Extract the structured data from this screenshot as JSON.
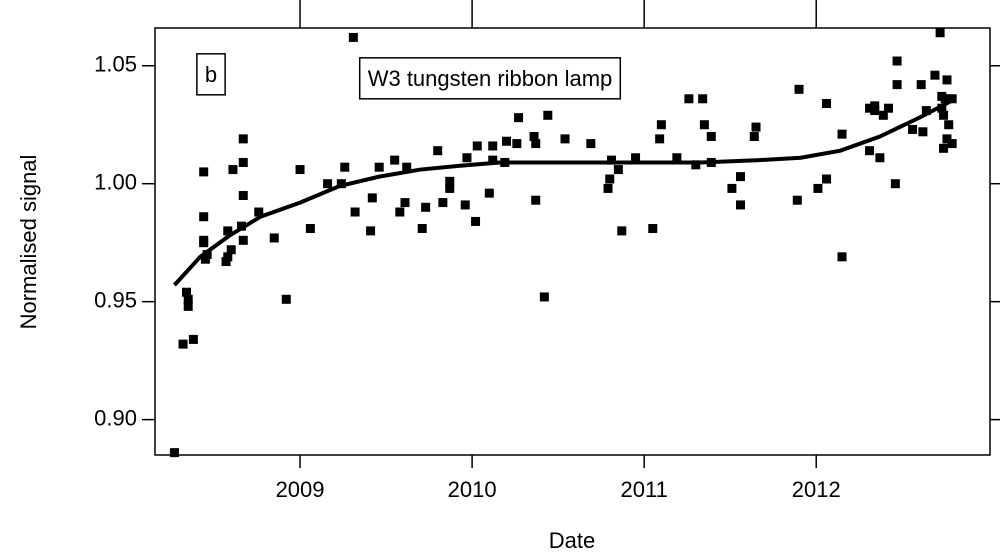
{
  "chart_data": {
    "type": "scatter",
    "xlabel": "Date",
    "ylabel": "Normalised signal",
    "annotations": [
      "b",
      "W3 tungsten ribbon lamp"
    ],
    "xlim": [
      2008.157,
      2013.01
    ],
    "ylim": [
      0.885,
      1.066
    ],
    "xticks": [
      2009,
      2010,
      2011,
      2012
    ],
    "yticks": [
      {
        "value": 0.9,
        "label": "0.90"
      },
      0.95,
      {
        "value": 1.0,
        "label": "1.00"
      },
      1.05
    ],
    "series": [
      {
        "mode": "markers",
        "color": "#000000",
        "x": [
          2008.27,
          2008.32,
          2008.34,
          2008.35,
          2008.35,
          2008.38,
          2008.44,
          2008.44,
          2008.44,
          2008.45,
          2008.46,
          2008.44,
          2008.57,
          2008.58,
          2008.58,
          2008.6,
          2008.61,
          2008.66,
          2008.67,
          2008.67,
          2008.67,
          2008.67,
          2008.76,
          2008.85,
          2008.92,
          2009.0,
          2009.06,
          2009.16,
          2009.24,
          2009.26,
          2009.31,
          2009.32,
          2009.41,
          2009.42,
          2009.46,
          2009.55,
          2009.58,
          2009.61,
          2009.62,
          2009.71,
          2009.73,
          2009.8,
          2009.83,
          2009.87,
          2009.87,
          2009.96,
          2009.97,
          2010.02,
          2010.03,
          2010.1,
          2010.12,
          2010.12,
          2010.19,
          2010.2,
          2010.26,
          2010.27,
          2010.37,
          2010.37,
          2010.42,
          2010.44,
          2010.36,
          2010.54,
          2010.69,
          2010.79,
          2010.8,
          2010.81,
          2010.85,
          2010.87,
          2010.95,
          2011.05,
          2011.09,
          2011.1,
          2011.19,
          2011.26,
          2011.34,
          2011.35,
          2011.3,
          2011.39,
          2011.39,
          2011.51,
          2011.56,
          2011.56,
          2011.64,
          2011.65,
          2011.9,
          2011.89,
          2012.01,
          2012.06,
          2012.06,
          2012.15,
          2012.15,
          2012.31,
          2012.31,
          2012.34,
          2012.34,
          2012.37,
          2012.39,
          2012.42,
          2012.46,
          2012.47,
          2012.47,
          2012.56,
          2012.61,
          2012.62,
          2012.64,
          2012.69,
          2012.72,
          2012.73,
          2012.73,
          2012.74,
          2012.75,
          2012.74,
          2012.76,
          2012.77,
          2012.79,
          2012.79,
          2012.76
        ],
        "values": [
          0.886,
          0.932,
          0.954,
          0.951,
          0.948,
          0.934,
          0.976,
          0.975,
          0.986,
          0.968,
          0.97,
          1.005,
          0.967,
          0.969,
          0.98,
          0.972,
          1.006,
          0.982,
          0.995,
          1.009,
          1.019,
          0.976,
          0.988,
          0.977,
          0.951,
          1.006,
          0.981,
          1.0,
          1.0,
          1.007,
          1.062,
          0.988,
          0.98,
          0.994,
          1.007,
          1.01,
          0.988,
          0.992,
          1.007,
          0.981,
          0.99,
          1.014,
          0.992,
          1.001,
          0.998,
          0.991,
          1.011,
          0.984,
          1.016,
          0.996,
          1.01,
          1.016,
          1.009,
          1.018,
          1.017,
          1.028,
          1.017,
          0.993,
          0.952,
          1.029,
          1.02,
          1.019,
          1.017,
          0.998,
          1.002,
          1.01,
          1.006,
          0.98,
          1.011,
          0.981,
          1.019,
          1.025,
          1.011,
          1.036,
          1.036,
          1.025,
          1.008,
          1.009,
          1.02,
          0.998,
          0.991,
          1.003,
          1.02,
          1.024,
          1.04,
          0.993,
          0.998,
          1.002,
          1.034,
          0.969,
          1.021,
          1.032,
          1.014,
          1.033,
          1.031,
          1.011,
          1.029,
          1.032,
          1.0,
          1.052,
          1.042,
          1.023,
          1.042,
          1.022,
          1.031,
          1.046,
          1.064,
          1.037,
          1.032,
          1.029,
          1.036,
          1.015,
          1.044,
          1.025,
          1.036,
          1.017,
          1.019
        ]
      },
      {
        "mode": "line",
        "color": "#000000",
        "x": [
          2008.27,
          2008.42,
          2008.59,
          2008.77,
          2009.0,
          2009.23,
          2009.46,
          2009.7,
          2009.93,
          2010.16,
          2010.51,
          2011.33,
          2011.67,
          2011.91,
          2012.14,
          2012.37,
          2012.6,
          2012.81
        ],
        "values": [
          0.957,
          0.969,
          0.978,
          0.986,
          0.992,
          0.999,
          1.003,
          1.006,
          1.0076,
          1.009,
          1.009,
          1.009,
          1.01,
          1.011,
          1.014,
          1.02,
          1.028,
          1.036
        ]
      }
    ]
  }
}
